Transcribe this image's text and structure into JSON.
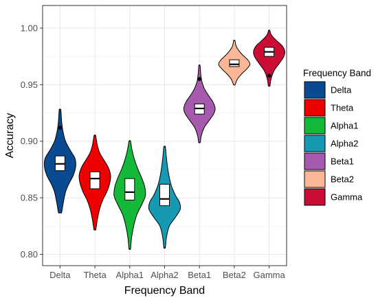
{
  "chart_data": {
    "type": "violin",
    "xlabel": "Frequency Band",
    "ylabel": "Accuracy",
    "ylim": [
      0.79,
      1.02
    ],
    "yticks": [
      0.8,
      0.85,
      0.9,
      0.95,
      1.0
    ],
    "ytick_labels": [
      "0.80",
      "0.85",
      "0.90",
      "0.95",
      "1.00"
    ],
    "grid": true,
    "legend_title": "Frequency Band",
    "legend_position": "right",
    "categories": [
      "Delta",
      "Theta",
      "Alpha1",
      "Alpha2",
      "Beta1",
      "Beta2",
      "Gamma"
    ],
    "series": [
      {
        "name": "Delta",
        "color": "#0a4a90",
        "min": 0.837,
        "max": 0.928,
        "q1": 0.874,
        "median": 0.88,
        "q3": 0.887,
        "outliers": [
          0.912
        ],
        "profile": [
          [
            0.837,
            0.1
          ],
          [
            0.845,
            0.2
          ],
          [
            0.855,
            0.35
          ],
          [
            0.862,
            0.55
          ],
          [
            0.87,
            0.85
          ],
          [
            0.878,
            1.0
          ],
          [
            0.885,
            0.95
          ],
          [
            0.892,
            0.65
          ],
          [
            0.9,
            0.35
          ],
          [
            0.908,
            0.2
          ],
          [
            0.915,
            0.12
          ],
          [
            0.922,
            0.08
          ],
          [
            0.928,
            0.05
          ]
        ]
      },
      {
        "name": "Theta",
        "color": "#ee0000",
        "min": 0.822,
        "max": 0.905,
        "q1": 0.858,
        "median": 0.867,
        "q3": 0.873,
        "outliers": [],
        "profile": [
          [
            0.822,
            0.06
          ],
          [
            0.83,
            0.15
          ],
          [
            0.84,
            0.3
          ],
          [
            0.848,
            0.5
          ],
          [
            0.855,
            0.75
          ],
          [
            0.863,
            0.95
          ],
          [
            0.87,
            1.0
          ],
          [
            0.877,
            0.85
          ],
          [
            0.884,
            0.55
          ],
          [
            0.89,
            0.3
          ],
          [
            0.897,
            0.15
          ],
          [
            0.905,
            0.05
          ]
        ]
      },
      {
        "name": "Alpha1",
        "color": "#15b93a",
        "min": 0.805,
        "max": 0.9,
        "q1": 0.848,
        "median": 0.855,
        "q3": 0.867,
        "outliers": [],
        "profile": [
          [
            0.805,
            0.05
          ],
          [
            0.815,
            0.12
          ],
          [
            0.825,
            0.25
          ],
          [
            0.835,
            0.45
          ],
          [
            0.845,
            0.8
          ],
          [
            0.852,
            1.0
          ],
          [
            0.86,
            0.95
          ],
          [
            0.868,
            0.75
          ],
          [
            0.876,
            0.5
          ],
          [
            0.884,
            0.3
          ],
          [
            0.892,
            0.15
          ],
          [
            0.9,
            0.05
          ]
        ]
      },
      {
        "name": "Alpha2",
        "color": "#1799b3",
        "min": 0.806,
        "max": 0.895,
        "q1": 0.843,
        "median": 0.849,
        "q3": 0.862,
        "outliers": [],
        "profile": [
          [
            0.806,
            0.05
          ],
          [
            0.815,
            0.12
          ],
          [
            0.825,
            0.3
          ],
          [
            0.833,
            0.7
          ],
          [
            0.84,
            1.0
          ],
          [
            0.846,
            0.95
          ],
          [
            0.852,
            0.7
          ],
          [
            0.86,
            0.45
          ],
          [
            0.868,
            0.3
          ],
          [
            0.876,
            0.2
          ],
          [
            0.885,
            0.12
          ],
          [
            0.895,
            0.05
          ]
        ]
      },
      {
        "name": "Beta1",
        "color": "#a55aae",
        "min": 0.899,
        "max": 0.967,
        "q1": 0.924,
        "median": 0.929,
        "q3": 0.933,
        "outliers": [
          0.955
        ],
        "profile": [
          [
            0.899,
            0.05
          ],
          [
            0.905,
            0.12
          ],
          [
            0.912,
            0.3
          ],
          [
            0.918,
            0.6
          ],
          [
            0.924,
            0.9
          ],
          [
            0.929,
            1.0
          ],
          [
            0.935,
            0.85
          ],
          [
            0.941,
            0.55
          ],
          [
            0.947,
            0.3
          ],
          [
            0.953,
            0.15
          ],
          [
            0.96,
            0.08
          ],
          [
            0.967,
            0.04
          ]
        ]
      },
      {
        "name": "Beta2",
        "color": "#fbb696",
        "min": 0.95,
        "max": 0.989,
        "q1": 0.966,
        "median": 0.968,
        "q3": 0.972,
        "outliers": [],
        "profile": [
          [
            0.95,
            0.05
          ],
          [
            0.955,
            0.2
          ],
          [
            0.96,
            0.5
          ],
          [
            0.964,
            0.8
          ],
          [
            0.968,
            1.0
          ],
          [
            0.972,
            0.85
          ],
          [
            0.976,
            0.55
          ],
          [
            0.98,
            0.3
          ],
          [
            0.984,
            0.12
          ],
          [
            0.989,
            0.04
          ]
        ]
      },
      {
        "name": "Gamma",
        "color": "#cc0d36",
        "min": 0.949,
        "max": 0.998,
        "q1": 0.975,
        "median": 0.979,
        "q3": 0.983,
        "outliers": [
          0.958
        ],
        "profile": [
          [
            0.949,
            0.05
          ],
          [
            0.955,
            0.12
          ],
          [
            0.962,
            0.3
          ],
          [
            0.968,
            0.6
          ],
          [
            0.974,
            0.9
          ],
          [
            0.979,
            1.0
          ],
          [
            0.984,
            0.85
          ],
          [
            0.988,
            0.55
          ],
          [
            0.992,
            0.25
          ],
          [
            0.995,
            0.1
          ],
          [
            0.998,
            0.04
          ]
        ]
      }
    ]
  }
}
